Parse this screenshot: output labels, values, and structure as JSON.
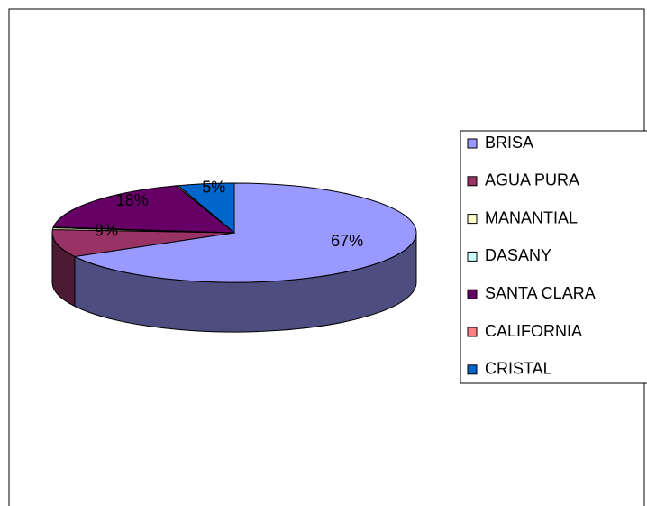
{
  "chart_data": {
    "type": "pie3d",
    "categories": [
      "BRISA",
      "AGUA PURA",
      "MANANTIAL",
      "DASANY",
      "SANTA CLARA",
      "CALIFORNIA",
      "CRISTAL"
    ],
    "values": [
      67,
      9,
      0.6,
      0.2,
      18,
      0.2,
      5
    ],
    "value_labels": [
      "67%",
      "9%",
      null,
      null,
      "18%",
      null,
      "5%"
    ],
    "colors": [
      "#9999FF",
      "#993366",
      "#FFFFCC",
      "#CCFFFF",
      "#660066",
      "#FF8080",
      "#0066CC"
    ],
    "legend": "right"
  }
}
